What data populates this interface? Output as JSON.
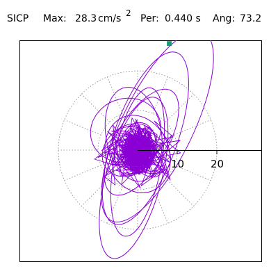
{
  "header": {
    "station": "SICP",
    "max_label": "Max:",
    "max_value": "28.3",
    "max_unit": "cm/s",
    "max_unit_exp": "2",
    "per_label": "Per:",
    "per_value": "0.440 s",
    "ang_label": "Ang:",
    "ang_value": "73.2"
  },
  "chart_data": {
    "type": "line",
    "description_units": "cm/s^2",
    "polar_grid": {
      "rings": [
        10,
        20
      ],
      "dotted": true,
      "spokes": 16
    },
    "axis_tick_labels": [
      "10",
      "20"
    ],
    "max_amplitude": 28.3,
    "max_point": {
      "x": 8.0,
      "y": 26.9
    },
    "colors": {
      "trace": "#8a00d4",
      "marker": "#1a9a78",
      "grid": "#808080"
    },
    "loops": [
      {
        "cx": 5.0,
        "cy": 6.0,
        "a": 26.5,
        "b": 9.0,
        "rot": 64,
        "w": 1
      },
      {
        "cx": 2.0,
        "cy": 3.0,
        "a": 23.0,
        "b": 8.0,
        "rot": 70,
        "w": 1
      },
      {
        "cx": -1.0,
        "cy": -7.0,
        "a": 21.0,
        "b": 7.0,
        "rot": 75,
        "w": 1
      },
      {
        "cx": 0.0,
        "cy": -3.0,
        "a": 19.0,
        "b": 6.0,
        "rot": 80,
        "w": 1
      },
      {
        "cx": 1.0,
        "cy": 2.0,
        "a": 15.0,
        "b": 6.5,
        "rot": 60,
        "w": 1
      },
      {
        "cx": -1.0,
        "cy": 4.0,
        "a": 12.0,
        "b": 7.0,
        "rot": 100,
        "w": 1
      },
      {
        "cx": -3.0,
        "cy": 5.0,
        "a": 9.0,
        "b": 8.0,
        "rot": 20,
        "w": 1
      },
      {
        "cx": 0.0,
        "cy": -1.0,
        "a": 10.0,
        "b": 8.0,
        "rot": 110,
        "w": 1
      },
      {
        "cx": -2.0,
        "cy": 0.0,
        "a": 7.5,
        "b": 6.0,
        "rot": 40,
        "w": 1
      },
      {
        "cx": 1.0,
        "cy": 0.0,
        "a": 8.0,
        "b": 5.0,
        "rot": 150,
        "w": 1
      },
      {
        "cx": 0.0,
        "cy": 1.0,
        "a": 6.0,
        "b": 4.5,
        "rot": 80,
        "w": 1
      },
      {
        "cx": -1.0,
        "cy": -1.0,
        "a": 5.0,
        "b": 4.0,
        "rot": 10,
        "w": 1
      },
      {
        "cx": 2.0,
        "cy": -2.0,
        "a": 5.5,
        "b": 3.5,
        "rot": 130,
        "w": 1
      },
      {
        "cx": 0.0,
        "cy": 0.0,
        "a": 4.0,
        "b": 3.0,
        "rot": 60,
        "w": 1
      }
    ]
  }
}
